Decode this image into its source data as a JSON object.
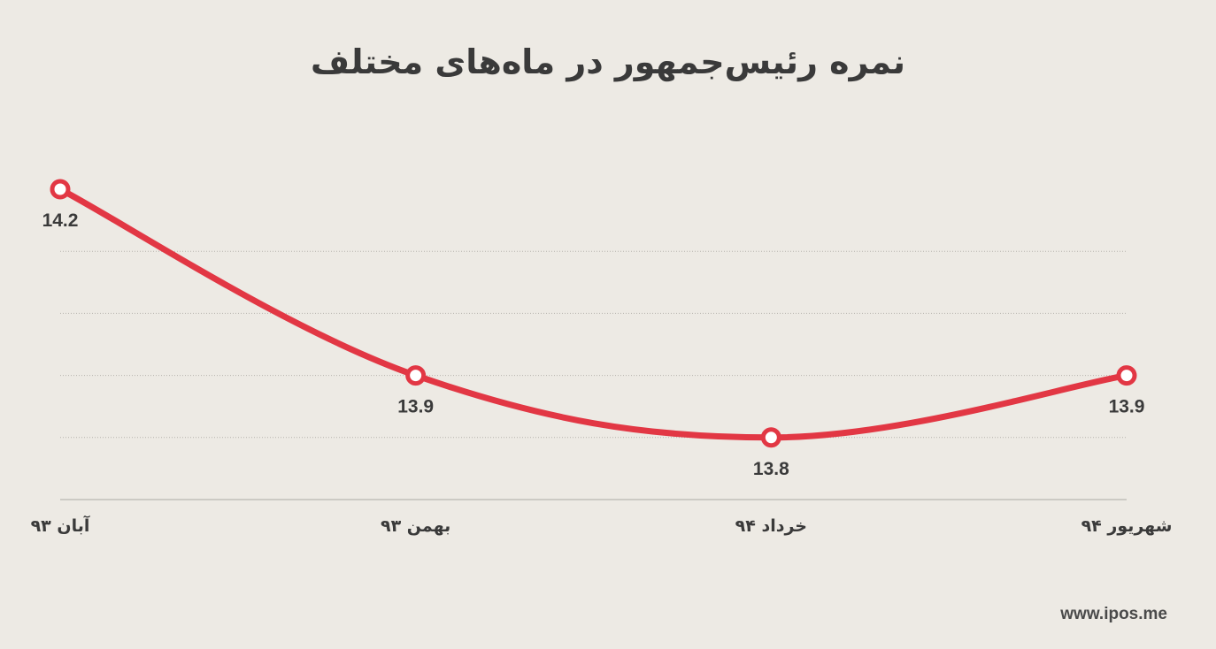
{
  "chart_data": {
    "type": "line",
    "title": "نمره رئیس‌جمهور در ماه‌های مختلف",
    "categories": [
      "آبان ۹۳",
      "بهمن ۹۳",
      "خرداد ۹۴",
      "شهریور ۹۴"
    ],
    "series": [
      {
        "values": [
          14.2,
          13.9,
          13.8,
          13.9
        ],
        "labels": [
          "14.2",
          "13.9",
          "13.8",
          "13.9"
        ]
      }
    ],
    "ylim": [
      13.7,
      14.2
    ],
    "grid": true,
    "line_color": "#e23744",
    "background": "#edeae4",
    "xlabel": "",
    "ylabel": ""
  },
  "footer": {
    "source": "www.ipos.me"
  }
}
